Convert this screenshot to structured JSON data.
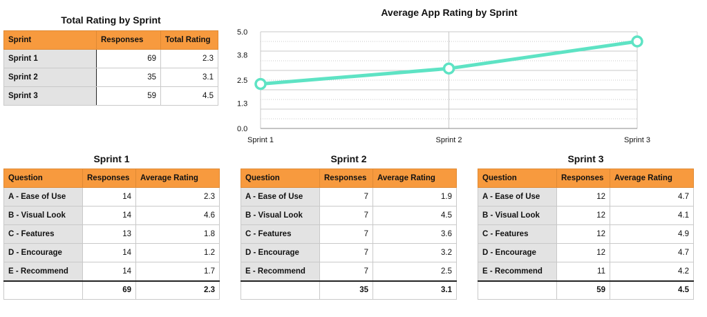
{
  "total_table": {
    "title": "Total Rating by Sprint",
    "headers": [
      "Sprint",
      "Responses",
      "Total Rating"
    ],
    "rows": [
      {
        "label": "Sprint 1",
        "responses": "69",
        "rating": "2.3"
      },
      {
        "label": "Sprint 2",
        "responses": "35",
        "rating": "3.1"
      },
      {
        "label": "Sprint 3",
        "responses": "59",
        "rating": "4.5"
      }
    ]
  },
  "sprint_tables": [
    {
      "title": "Sprint 1",
      "headers": [
        "Question",
        "Responses",
        "Average Rating"
      ],
      "rows": [
        {
          "label": "A - Ease of Use",
          "responses": "14",
          "rating": "2.3"
        },
        {
          "label": "B - Visual Look",
          "responses": "14",
          "rating": "4.6"
        },
        {
          "label": "C - Features",
          "responses": "13",
          "rating": "1.8"
        },
        {
          "label": "D - Encourage",
          "responses": "14",
          "rating": "1.2"
        },
        {
          "label": "E - Recommend",
          "responses": "14",
          "rating": "1.7"
        }
      ],
      "total": {
        "responses": "69",
        "rating": "2.3"
      }
    },
    {
      "title": "Sprint 2",
      "headers": [
        "Question",
        "Responses",
        "Average Rating"
      ],
      "rows": [
        {
          "label": "A - Ease of Use",
          "responses": "7",
          "rating": "1.9"
        },
        {
          "label": "B - Visual Look",
          "responses": "7",
          "rating": "4.5"
        },
        {
          "label": "C - Features",
          "responses": "7",
          "rating": "3.6"
        },
        {
          "label": "D - Encourage",
          "responses": "7",
          "rating": "3.2"
        },
        {
          "label": "E - Recommend",
          "responses": "7",
          "rating": "2.5"
        }
      ],
      "total": {
        "responses": "35",
        "rating": "3.1"
      }
    },
    {
      "title": "Sprint 3",
      "headers": [
        "Question",
        "Responses",
        "Average Rating"
      ],
      "rows": [
        {
          "label": "A - Ease of Use",
          "responses": "12",
          "rating": "4.7"
        },
        {
          "label": "B - Visual Look",
          "responses": "12",
          "rating": "4.1"
        },
        {
          "label": "C - Features",
          "responses": "12",
          "rating": "4.9"
        },
        {
          "label": "D - Encourage",
          "responses": "12",
          "rating": "4.7"
        },
        {
          "label": "E - Recommend",
          "responses": "11",
          "rating": "4.2"
        }
      ],
      "total": {
        "responses": "59",
        "rating": "4.5"
      }
    }
  ],
  "colors": {
    "header": "#f79a3e",
    "line": "#5ee3c4",
    "rowhead": "#e3e3e3"
  },
  "chart_data": {
    "type": "line",
    "title": "Average App Rating by Sprint",
    "categories": [
      "Sprint 1",
      "Sprint 2",
      "Sprint 3"
    ],
    "series": [
      {
        "values": [
          2.3,
          3.1,
          4.5
        ]
      }
    ],
    "ylim": [
      0,
      5
    ],
    "yticks": [
      "0.0",
      "1.3",
      "2.5",
      "3.8",
      "5.0"
    ],
    "grid": true,
    "legend": "none"
  }
}
